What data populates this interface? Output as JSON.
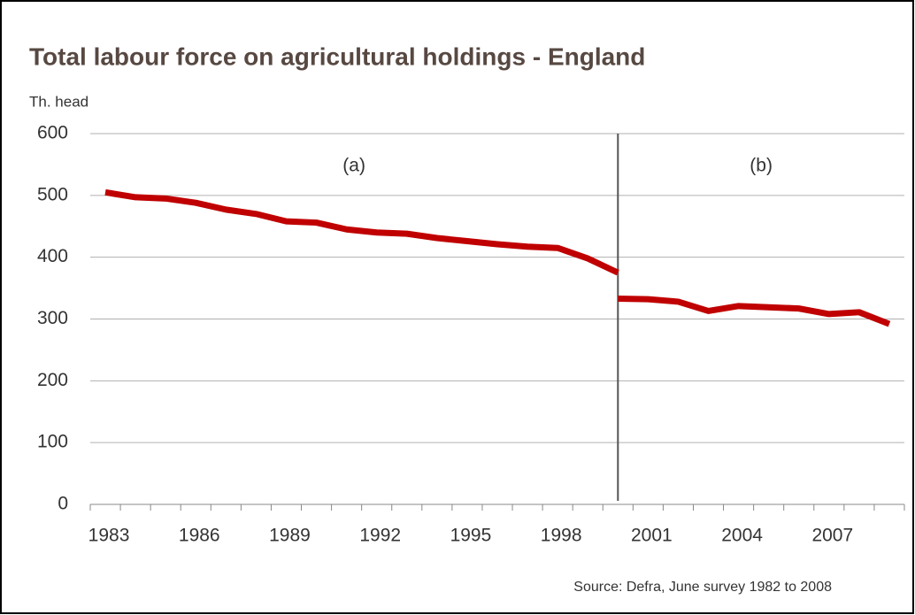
{
  "chart_data": {
    "type": "line",
    "title": "Total labour force on agricultural holdings - England",
    "y_axis_label": "Th. head",
    "source": "Source: Defra, June survey 1982 to 2008",
    "categories": [
      "1983",
      null,
      null,
      "1986",
      null,
      null,
      "1989",
      null,
      null,
      "1992",
      null,
      null,
      "1995",
      null,
      null,
      "1998",
      null,
      null,
      "2001",
      null,
      null,
      "2004",
      null,
      null,
      "2007",
      null,
      null
    ],
    "series": [
      {
        "name": "(a)",
        "color": "#c00000",
        "values": [
          505,
          497,
          495,
          488,
          477,
          470,
          458,
          456,
          445,
          440,
          438,
          431,
          426,
          421,
          417,
          415,
          398,
          375,
          null,
          null,
          null,
          null,
          null,
          null,
          null,
          null,
          null
        ]
      },
      {
        "name": "(b)",
        "color": "#c00000",
        "values": [
          null,
          null,
          null,
          null,
          null,
          null,
          null,
          null,
          null,
          null,
          null,
          null,
          null,
          null,
          null,
          null,
          null,
          333,
          332,
          328,
          313,
          321,
          319,
          317,
          308,
          311,
          292
        ]
      }
    ],
    "ylim": [
      0,
      600
    ],
    "yticks": [
      0,
      100,
      200,
      300,
      400,
      500,
      600
    ],
    "grid": true
  }
}
